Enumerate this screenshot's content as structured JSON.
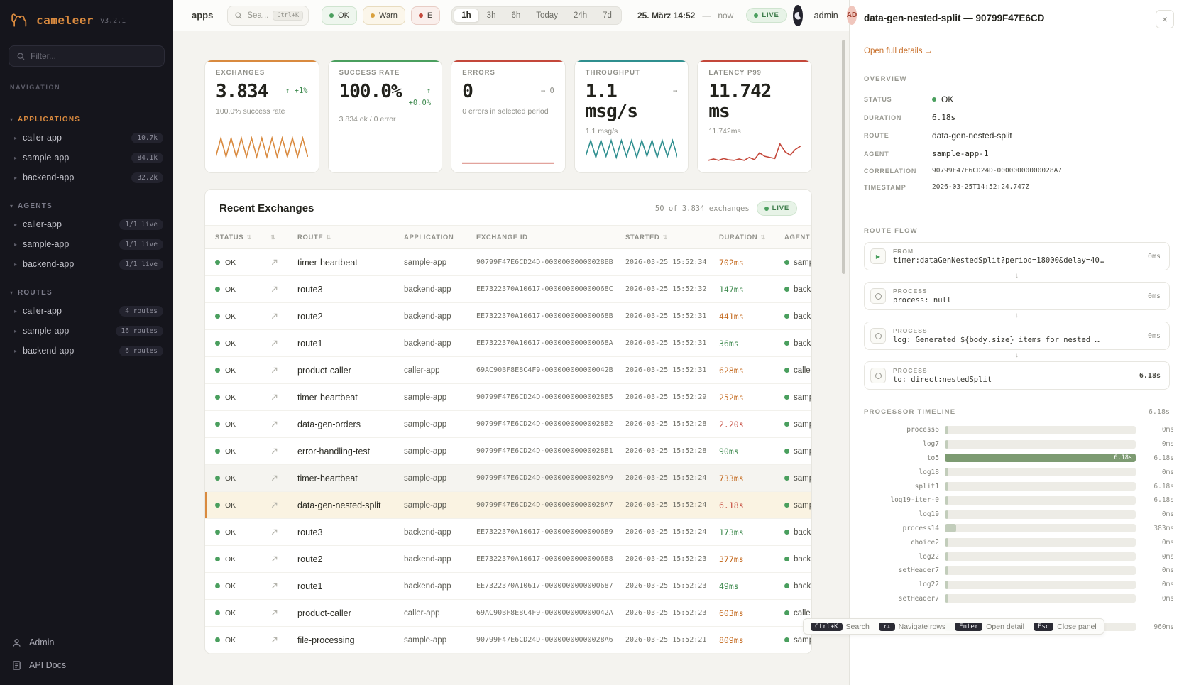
{
  "sidebar": {
    "logo": {
      "brand": "cameleer",
      "version": "v3.2.1"
    },
    "filter_placeholder": "Filter...",
    "nav_label": "NAVIGATION",
    "sections": [
      {
        "title": "APPLICATIONS",
        "accent": "#d98a3f",
        "items": [
          {
            "label": "caller-app",
            "badge": "10.7k"
          },
          {
            "label": "sample-app",
            "badge": "84.1k"
          },
          {
            "label": "backend-app",
            "badge": "32.2k"
          }
        ]
      },
      {
        "title": "AGENTS",
        "accent": "#7c7c8a",
        "items": [
          {
            "label": "caller-app",
            "badge": "1/1 live"
          },
          {
            "label": "sample-app",
            "badge": "1/1 live"
          },
          {
            "label": "backend-app",
            "badge": "1/1 live"
          }
        ]
      },
      {
        "title": "ROUTES",
        "accent": "#7c7c8a",
        "items": [
          {
            "label": "caller-app",
            "badge": "4 routes"
          },
          {
            "label": "sample-app",
            "badge": "16 routes"
          },
          {
            "label": "backend-app",
            "badge": "6 routes"
          }
        ]
      }
    ],
    "footer": {
      "admin": "Admin",
      "api_docs": "API Docs"
    }
  },
  "topbar": {
    "context": "apps",
    "search": {
      "placeholder": "Sea...",
      "shortcut": "Ctrl+K"
    },
    "filters": [
      {
        "label": "OK",
        "dot": "#4a9f5e",
        "bg": "#eef6ee",
        "border": "#cfe4cf"
      },
      {
        "label": "Warn",
        "dot": "#d9a13d",
        "bg": "#fbf6ea",
        "border": "#e8dcbf"
      },
      {
        "label": "E",
        "dot": "#c4473a",
        "bg": "#faefec",
        "border": "#e8cdc5"
      }
    ],
    "ranges": [
      {
        "label": "1h",
        "state": "active"
      },
      {
        "label": "3h"
      },
      {
        "label": "6h"
      },
      {
        "label": "Today"
      },
      {
        "label": "24h"
      },
      {
        "label": "7d"
      }
    ],
    "date": "25. März 14:52",
    "date_sep": "—",
    "date_end": "now",
    "live": "LIVE",
    "user": "admin",
    "avatar": "AD"
  },
  "kpis": [
    {
      "title": "EXCHANGES",
      "value": "3.834",
      "delta": "↑ +1%",
      "delta_color": "#3f8a4f",
      "subtitle": "100.0% success rate",
      "accent": "#d98a3f",
      "spark": [
        0.25,
        1,
        0.25,
        1,
        0.25,
        1,
        0.25,
        1,
        0.25,
        1,
        0.25,
        1,
        0.25,
        1,
        0.25,
        1,
        0.25,
        1,
        0.25
      ]
    },
    {
      "title": "SUCCESS RATE",
      "value": "100.0%",
      "delta": "↑ +0.0%",
      "delta_color": "#3f8a4f",
      "subtitle": "3.834 ok / 0 error",
      "accent": "#4a9f5e",
      "spark": []
    },
    {
      "title": "ERRORS",
      "value": "0",
      "delta": "→ 0",
      "delta_color": "#8f8f88",
      "subtitle": "0 errors in selected period",
      "accent": "#c4473a",
      "spark": [
        0,
        0,
        0,
        0,
        0,
        0,
        0,
        0,
        0,
        0
      ]
    },
    {
      "title": "THROUGHPUT",
      "value": "1.1 msg/s",
      "delta": "→",
      "delta_color": "#8f8f88",
      "subtitle": "1.1 msg/s",
      "accent": "#2f8f8f",
      "spark": [
        0.3,
        1,
        0.25,
        1,
        0.3,
        1,
        0.25,
        1,
        0.3,
        1,
        0.25,
        1,
        0.3,
        1,
        0.25,
        1,
        0.3,
        1,
        0.25
      ]
    },
    {
      "title": "LATENCY P99",
      "value": "11.742 ms",
      "delta": "",
      "delta_color": "#8f8f88",
      "subtitle": "11.742ms",
      "accent": "#c4473a",
      "spark": [
        0.12,
        0.18,
        0.12,
        0.2,
        0.14,
        0.12,
        0.18,
        0.12,
        0.25,
        0.15,
        0.45,
        0.3,
        0.25,
        0.2,
        0.85,
        0.5,
        0.35,
        0.6,
        0.75
      ]
    }
  ],
  "exchanges_table": {
    "title": "Recent Exchanges",
    "summary": "50 of 3.834 exchanges",
    "live": "LIVE",
    "col_status": "STATUS",
    "col_route": "ROUTE",
    "col_app": "APPLICATION",
    "col_id": "EXCHANGE ID",
    "col_started": "STARTED",
    "col_duration": "DURATION",
    "col_agent": "AGENT",
    "rows": [
      {
        "status": "OK",
        "route": "timer-heartbeat",
        "app": "sample-app",
        "id": "90799F47E6CD24D-00000000000028BB",
        "started": "2026-03-25 15:52:34",
        "duration": "702ms",
        "duration_color": "#c46a1f",
        "agent": "sample"
      },
      {
        "status": "OK",
        "route": "route3",
        "app": "backend-app",
        "id": "EE7322370A10617-000000000000068C",
        "started": "2026-03-25 15:52:32",
        "duration": "147ms",
        "duration_color": "#3f8a4f",
        "agent": "backen"
      },
      {
        "status": "OK",
        "route": "route2",
        "app": "backend-app",
        "id": "EE7322370A10617-000000000000068B",
        "started": "2026-03-25 15:52:31",
        "duration": "441ms",
        "duration_color": "#c46a1f",
        "agent": "backen"
      },
      {
        "status": "OK",
        "route": "route1",
        "app": "backend-app",
        "id": "EE7322370A10617-000000000000068A",
        "started": "2026-03-25 15:52:31",
        "duration": "36ms",
        "duration_color": "#3f8a4f",
        "agent": "backen"
      },
      {
        "status": "OK",
        "route": "product-caller",
        "app": "caller-app",
        "id": "69AC90BF8E8C4F9-000000000000042B",
        "started": "2026-03-25 15:52:31",
        "duration": "628ms",
        "duration_color": "#c46a1f",
        "agent": "caller"
      },
      {
        "status": "OK",
        "route": "timer-heartbeat",
        "app": "sample-app",
        "id": "90799F47E6CD24D-00000000000028B5",
        "started": "2026-03-25 15:52:29",
        "duration": "252ms",
        "duration_color": "#c46a1f",
        "agent": "sample"
      },
      {
        "status": "OK",
        "route": "data-gen-orders",
        "app": "sample-app",
        "id": "90799F47E6CD24D-00000000000028B2",
        "started": "2026-03-25 15:52:28",
        "duration": "2.20s",
        "duration_color": "#c4473a",
        "agent": "sample"
      },
      {
        "status": "OK",
        "route": "error-handling-test",
        "app": "sample-app",
        "id": "90799F47E6CD24D-00000000000028B1",
        "started": "2026-03-25 15:52:28",
        "duration": "90ms",
        "duration_color": "#3f8a4f",
        "agent": "sample"
      },
      {
        "status": "OK",
        "route": "timer-heartbeat",
        "app": "sample-app",
        "id": "90799F47E6CD24D-00000000000028A9",
        "started": "2026-03-25 15:52:24",
        "duration": "733ms",
        "duration_color": "#c46a1f",
        "agent": "sample",
        "state": "hovered"
      },
      {
        "status": "OK",
        "route": "data-gen-nested-split",
        "app": "sample-app",
        "id": "90799F47E6CD24D-00000000000028A7",
        "started": "2026-03-25 15:52:24",
        "duration": "6.18s",
        "duration_color": "#c4473a",
        "agent": "sample",
        "state": "selected"
      },
      {
        "status": "OK",
        "route": "route3",
        "app": "backend-app",
        "id": "EE7322370A10617-0000000000000689",
        "started": "2026-03-25 15:52:24",
        "duration": "173ms",
        "duration_color": "#3f8a4f",
        "agent": "backen"
      },
      {
        "status": "OK",
        "route": "route2",
        "app": "backend-app",
        "id": "EE7322370A10617-0000000000000688",
        "started": "2026-03-25 15:52:23",
        "duration": "377ms",
        "duration_color": "#c46a1f",
        "agent": "backen"
      },
      {
        "status": "OK",
        "route": "route1",
        "app": "backend-app",
        "id": "EE7322370A10617-0000000000000687",
        "started": "2026-03-25 15:52:23",
        "duration": "49ms",
        "duration_color": "#3f8a4f",
        "agent": "backen"
      },
      {
        "status": "OK",
        "route": "product-caller",
        "app": "caller-app",
        "id": "69AC90BF8E8C4F9-000000000000042A",
        "started": "2026-03-25 15:52:23",
        "duration": "603ms",
        "duration_color": "#c46a1f",
        "agent": "caller"
      },
      {
        "status": "OK",
        "route": "file-processing",
        "app": "sample-app",
        "id": "90799F47E6CD24D-00000000000028A6",
        "started": "2026-03-25 15:52:21",
        "duration": "809ms",
        "duration_color": "#c46a1f",
        "agent": "sample"
      }
    ]
  },
  "panel": {
    "title": "data-gen-nested-split — 90799F47E6CD",
    "close": "×",
    "open_link": "Open full details →",
    "overview_label": "OVERVIEW",
    "overview": {
      "status_label": "STATUS",
      "status_value": "OK",
      "duration_label": "DURATION",
      "duration_value": "6.18s",
      "route_label": "ROUTE",
      "route_value": "data-gen-nested-split",
      "agent_label": "AGENT",
      "agent_value": "sample-app-1",
      "correlation_label": "CORRELATION",
      "correlation_value": "90799F47E6CD24D-00000000000028A7",
      "timestamp_label": "TIMESTAMP",
      "timestamp_value": "2026-03-25T14:52:24.747Z"
    },
    "route_flow_label": "ROUTE FLOW",
    "flow": [
      {
        "kind": "FROM",
        "code": "timer:dataGenNestedSplit?period=18000&delay=40…",
        "time": "0ms"
      },
      {
        "kind": "PROCESS",
        "code": "process: null",
        "time": "0ms"
      },
      {
        "kind": "PROCESS",
        "code": "log: Generated ${body.size} items for nested …",
        "time": "0ms"
      },
      {
        "kind": "PROCESS",
        "code": "to: direct:nestedSplit",
        "time": "6.18s"
      }
    ],
    "timeline_label": "PROCESSOR TIMELINE",
    "timeline_total": "6.18s",
    "timeline": [
      {
        "name": "process6",
        "value": "0ms",
        "width": "2%"
      },
      {
        "name": "log7",
        "value": "0ms",
        "width": "2%"
      },
      {
        "name": "to5",
        "value": "6.18s",
        "width": "100%",
        "bar_label": "6.18s"
      },
      {
        "name": "log18",
        "value": "0ms",
        "width": "2%"
      },
      {
        "name": "split1",
        "value": "6.18s",
        "width": "2%"
      },
      {
        "name": "log19-iter-0",
        "value": "6.18s",
        "width": "2%"
      },
      {
        "name": "log19",
        "value": "0ms",
        "width": "2%"
      },
      {
        "name": "process14",
        "value": "383ms",
        "width": "6%"
      },
      {
        "name": "choice2",
        "value": "0ms",
        "width": "2%"
      },
      {
        "name": "log22",
        "value": "0ms",
        "width": "2%"
      },
      {
        "name": "setHeader7",
        "value": "0ms",
        "width": "2%"
      },
      {
        "name": "log22",
        "value": "0ms",
        "width": "2%"
      },
      {
        "name": "setHeader7",
        "value": "0ms",
        "width": "2%"
      },
      {
        "name": "to9",
        "value": "960ms",
        "width": "16%"
      }
    ]
  },
  "hints": [
    {
      "key": "Ctrl+K",
      "label": "Search"
    },
    {
      "key": "↑↓",
      "label": "Navigate rows"
    },
    {
      "key": "Enter",
      "label": "Open detail"
    },
    {
      "key": "Esc",
      "label": "Close panel"
    }
  ]
}
